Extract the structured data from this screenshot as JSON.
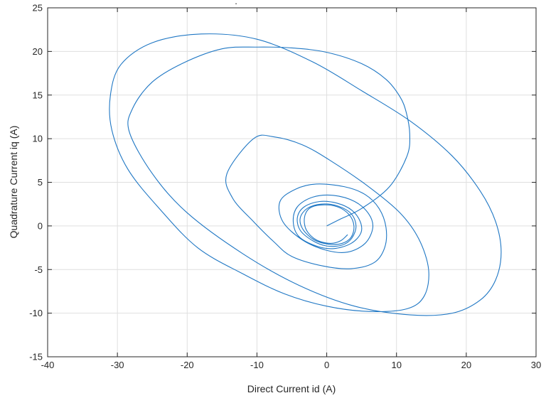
{
  "chart_data": {
    "type": "line",
    "title": ".",
    "xlabel": "Direct Current id (A)",
    "ylabel": "Quadrature Current iq (A)",
    "xlim": [
      -40,
      30
    ],
    "ylim": [
      -15,
      25
    ],
    "xticks": [
      -40,
      -30,
      -20,
      -10,
      0,
      10,
      20,
      30
    ],
    "yticks": [
      -15,
      -10,
      -5,
      0,
      5,
      10,
      15,
      20,
      25
    ],
    "xtick_labels": [
      "-40",
      "-30",
      "-20",
      "-10",
      "0",
      "10",
      "20",
      "30"
    ],
    "ytick_labels": [
      "-15",
      "-10",
      "-5",
      "0",
      "5",
      "10",
      "15",
      "20",
      "25"
    ],
    "grid": true,
    "legend": "none",
    "series_color": "#1f77c4",
    "series": [
      {
        "x": [
          0,
          2,
          5,
          9,
          11.5,
          11.9,
          11.4,
          10.5,
          8.5,
          5,
          0,
          -5,
          -10,
          -15,
          -20.5,
          -25,
          -27.8,
          -28.3,
          -25,
          -20,
          -12,
          -4,
          4,
          12,
          18,
          22,
          24.2,
          25,
          24.2,
          22,
          18,
          12,
          5,
          -2,
          -10,
          -18,
          -25,
          -29.5,
          -31,
          -30.8,
          -28.5,
          -24,
          -18.5,
          -12,
          -6,
          0,
          6,
          11.5,
          14,
          14.6,
          13.2,
          10.5,
          6,
          0.5,
          -3.5,
          -7.5,
          -10.5,
          -14.3,
          -13.5,
          -10.5,
          -7.6,
          -5,
          -0.5,
          3.5,
          6.8,
          8.3,
          8.5,
          7.5,
          5.5,
          2.5,
          -1.5,
          -4.5,
          -6.7,
          -6.3,
          -3.5,
          0,
          3,
          5.5,
          6.6,
          6,
          4,
          1,
          -2,
          -4.2,
          -4.8,
          -4,
          -1.5,
          1,
          3.5,
          4.9,
          4.8,
          3.6,
          1.5,
          -1,
          -3.2,
          -4.2,
          -3.8,
          -2,
          0,
          2.2,
          3.6,
          4.2,
          3.5,
          1.5,
          -0.8,
          -2.8,
          -3.8,
          -3.4,
          -1.8,
          0.3,
          2.2,
          3.5,
          3.9,
          3.2,
          1.5,
          -0.8,
          -2.5,
          -3.2,
          -2.9,
          -1.5,
          0.5,
          2,
          3
        ],
        "y": [
          0,
          0.8,
          2,
          4.5,
          8,
          10.5,
          13,
          14.8,
          16.8,
          18.6,
          19.9,
          20.4,
          20.5,
          20.3,
          18.7,
          16.5,
          13.5,
          10.8,
          6,
          1.5,
          -3.2,
          -6.8,
          -9.2,
          -10.2,
          -10,
          -8.5,
          -6.2,
          -3,
          0.5,
          4,
          8,
          12,
          15.5,
          18.8,
          21.4,
          22,
          21,
          18.5,
          15,
          11,
          6.5,
          2,
          -2.5,
          -5.5,
          -7.8,
          -9.2,
          -9.8,
          -9.5,
          -8,
          -5,
          -1.5,
          1.5,
          4.5,
          7.5,
          9.3,
          10.2,
          10,
          6,
          3.2,
          0.5,
          -1.8,
          -3.5,
          -4.6,
          -4.9,
          -4.2,
          -2.5,
          -0.2,
          2,
          3.6,
          4.5,
          4.8,
          4.2,
          2.8,
          0.5,
          -1.6,
          -2.8,
          -3,
          -2,
          -0.2,
          1.4,
          2.8,
          3.5,
          3.3,
          2.2,
          0.5,
          -1.2,
          -2.3,
          -2.6,
          -2,
          -0.8,
          0.5,
          1.8,
          2.6,
          2.8,
          2.2,
          1,
          -0.5,
          -1.7,
          -2.3,
          -2.2,
          -1.4,
          0,
          1.4,
          2.3,
          2.5,
          2,
          0.9,
          -0.4,
          -1.6,
          -2.1,
          -2,
          -1.3,
          0,
          1.3,
          2.2,
          2.4,
          2,
          0.9,
          -0.5,
          -1.6,
          -2,
          -1.7,
          -1
        ]
      }
    ]
  }
}
